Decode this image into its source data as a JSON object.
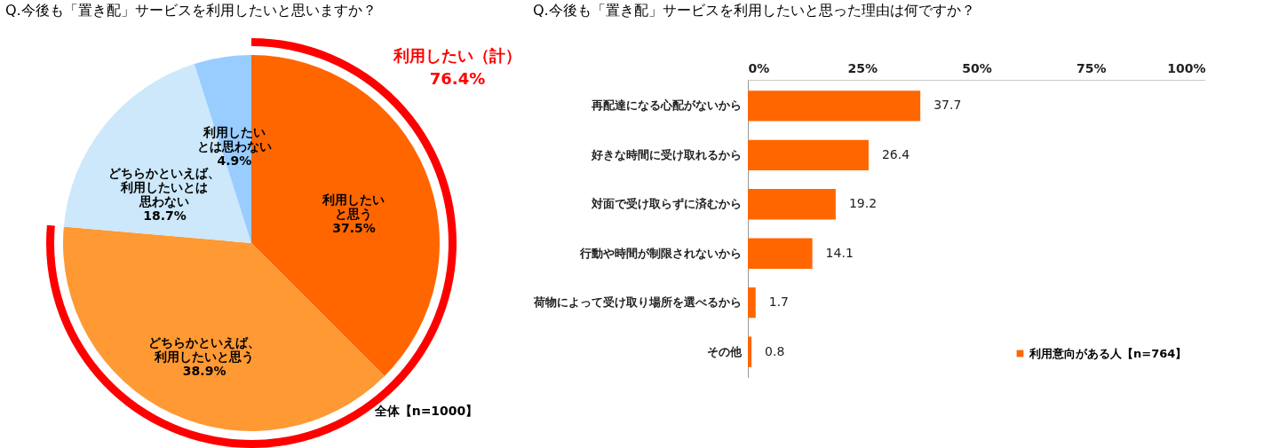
{
  "chart_data": [
    {
      "type": "pie",
      "title": "Q.今後も「置き配」サービスを利用したいと思いますか？",
      "categories": [
        "利用したいと思う",
        "どちらかといえば、利用したいと思う",
        "どちらかといえば、利用したいとは思わない",
        "利用したいとは思わない"
      ],
      "values": [
        37.5,
        38.9,
        18.7,
        4.9
      ],
      "value_labels": [
        "37.5%",
        "38.9%",
        "18.7%",
        "4.9%"
      ],
      "colors": [
        "#ff6600",
        "#ff9933",
        "#cce8fa",
        "#99ccff"
      ],
      "annotations": [
        "利用したい（計）",
        "76.4%",
        "全体【n=1000】"
      ]
    },
    {
      "type": "bar",
      "orientation": "horizontal",
      "title": "Q.今後も「置き配」サービスを利用したいと思った理由は何ですか？",
      "categories": [
        "再配達になる心配がないから",
        "好きな時間に受け取れるから",
        "対面で受け取らずに済むから",
        "行動や時間が制限されないから",
        "荷物によって受け取り場所を選べるから",
        "その他"
      ],
      "series": [
        {
          "name": "利用意向がある人【n=764】",
          "color": "#ff6600",
          "values": [
            37.7,
            26.4,
            19.2,
            14.1,
            1.7,
            0.8
          ]
        }
      ],
      "xlim": [
        0,
        100
      ],
      "xticks": [
        {
          "value": 0,
          "label": "0%"
        },
        {
          "value": 25,
          "label": "25%"
        },
        {
          "value": 50,
          "label": "50%"
        },
        {
          "value": 75,
          "label": "75%"
        },
        {
          "value": 100,
          "label": "100%"
        }
      ],
      "data_labels": true,
      "legend": "bottom right",
      "grid": false
    }
  ]
}
